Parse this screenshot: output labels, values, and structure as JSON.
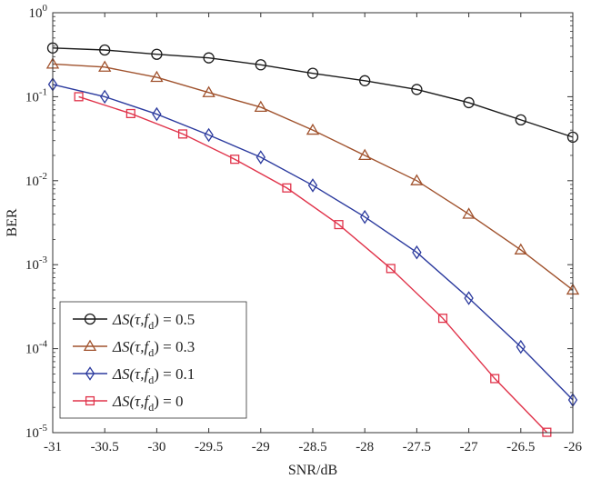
{
  "chart_data": {
    "type": "line",
    "xlabel": "SNR/dB",
    "ylabel": "BER",
    "xlim": [
      -31,
      -26
    ],
    "ylim": [
      1e-05,
      1
    ],
    "y_scale": "log",
    "grid": false,
    "legend_position": "bottom-left",
    "x_ticks": [
      -31,
      -30.5,
      -30,
      -29.5,
      -29,
      -28.5,
      -28,
      -27.5,
      -27,
      -26.5,
      -26
    ],
    "x_tick_labels": [
      "-31",
      "-30.5",
      "-30",
      "-29.5",
      "-29",
      "-28.5",
      "-28",
      "-27.5",
      "-27",
      "-26.5",
      "-26"
    ],
    "y_ticks": [
      {
        "value": 1,
        "base": "10",
        "exp": "0"
      },
      {
        "value": 0.1,
        "base": "10",
        "exp": "-1"
      },
      {
        "value": 0.01,
        "base": "10",
        "exp": "-2"
      },
      {
        "value": 0.001,
        "base": "10",
        "exp": "-3"
      },
      {
        "value": 0.0001,
        "base": "10",
        "exp": "-4"
      },
      {
        "value": 1e-05,
        "base": "10",
        "exp": "-5"
      }
    ],
    "series": [
      {
        "legend_prefix": "ΔS(τ,f",
        "legend_sub": "d",
        "legend_suffix": ") = 0.5",
        "color": "#1a1a1a",
        "marker": "circle",
        "x": [
          -31,
          -30.5,
          -30,
          -29.5,
          -29,
          -28.5,
          -28,
          -27.5,
          -27,
          -26.5,
          -26
        ],
        "y": [
          0.38,
          0.36,
          0.32,
          0.29,
          0.24,
          0.19,
          0.155,
          0.122,
          0.085,
          0.053,
          0.033
        ]
      },
      {
        "legend_prefix": "ΔS(τ,f",
        "legend_sub": "d",
        "legend_suffix": ") = 0.3",
        "color": "#a0522d",
        "marker": "triangle",
        "x": [
          -31,
          -30.5,
          -30,
          -29.5,
          -29,
          -28.5,
          -28,
          -27.5,
          -27,
          -26.5,
          -26
        ],
        "y": [
          0.245,
          0.225,
          0.17,
          0.112,
          0.075,
          0.04,
          0.02,
          0.01,
          0.004,
          0.0015,
          0.0005
        ]
      },
      {
        "legend_prefix": "ΔS(τ,f",
        "legend_sub": "d",
        "legend_suffix": ") = 0.1",
        "color": "#2b3a9e",
        "marker": "diamond",
        "x": [
          -31,
          -30.5,
          -30,
          -29.5,
          -29,
          -28.5,
          -28,
          -27.5,
          -27,
          -26.5,
          -26
        ],
        "y": [
          0.14,
          0.1,
          0.062,
          0.035,
          0.019,
          0.0088,
          0.0037,
          0.0014,
          0.0004,
          0.000105,
          2.45e-05
        ]
      },
      {
        "legend_prefix": "ΔS(τ,f",
        "legend_sub": "d",
        "legend_suffix": ") = 0",
        "color": "#e0334a",
        "marker": "square",
        "x": [
          -30.75,
          -30.25,
          -29.75,
          -29.25,
          -28.75,
          -28.25,
          -27.75,
          -27.25,
          -26.75,
          -26.25
        ],
        "y": [
          0.1,
          0.063,
          0.036,
          0.018,
          0.0082,
          0.003,
          0.0009,
          0.00023,
          4.4e-05,
          1.01e-05
        ]
      }
    ]
  }
}
